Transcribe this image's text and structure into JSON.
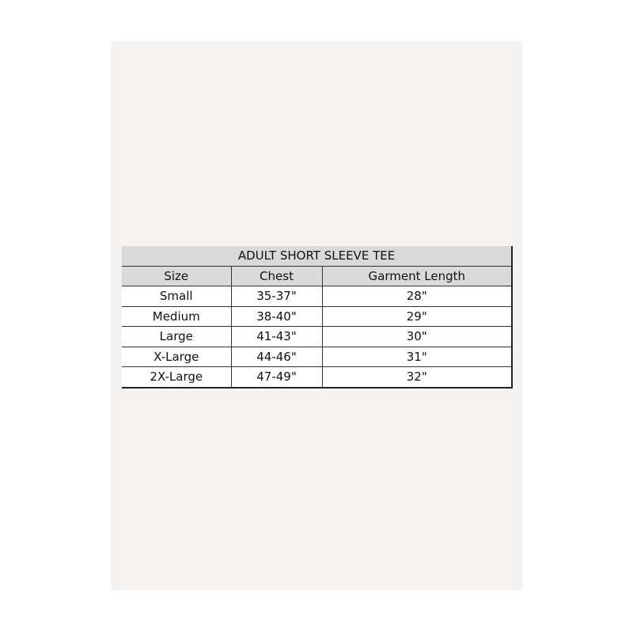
{
  "table": {
    "title": "ADULT SHORT SLEEVE TEE",
    "headers": [
      "Size",
      "Chest",
      "Garment Length"
    ],
    "rows": [
      [
        "Small",
        "35-37\"",
        "28\""
      ],
      [
        "Medium",
        "38-40\"",
        "29\""
      ],
      [
        "Large",
        "41-43\"",
        "30\""
      ],
      [
        "X-Large",
        "44-46\"",
        "31\""
      ],
      [
        "2X-Large",
        "47-49\"",
        "32\""
      ]
    ]
  }
}
